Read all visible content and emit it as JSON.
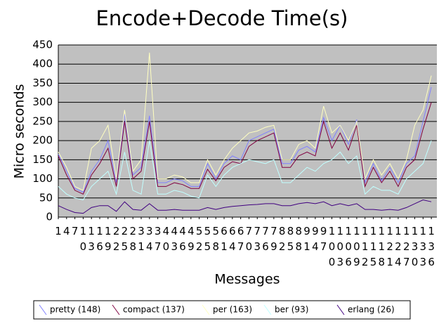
{
  "chart_data": {
    "type": "line",
    "title": "Encode+Decode Time(s)",
    "x_label": "Messages",
    "y_label": "Micro seconds",
    "x": [
      1,
      4,
      7,
      10,
      13,
      16,
      19,
      22,
      25,
      28,
      31,
      34,
      37,
      40,
      43,
      46,
      49,
      52,
      55,
      58,
      61,
      64,
      67,
      70,
      73,
      76,
      79,
      82,
      85,
      88,
      91,
      94,
      97,
      100,
      103,
      106,
      109,
      112,
      115,
      118,
      121,
      124,
      127,
      130,
      133,
      136
    ],
    "xlim": [
      1,
      138
    ],
    "xticks": [
      1,
      4,
      7,
      10,
      13,
      16,
      19,
      22,
      25,
      28,
      31,
      34,
      37,
      40,
      43,
      46,
      49,
      52,
      55,
      58,
      61,
      64,
      67,
      70,
      73,
      76,
      79,
      82,
      85,
      88,
      91,
      94,
      97,
      100,
      103,
      106,
      109,
      112,
      115,
      118,
      121,
      124,
      127,
      130,
      133,
      136
    ],
    "ylim": [
      0,
      450
    ],
    "yticks": [
      0,
      50,
      100,
      150,
      200,
      250,
      300,
      350,
      400,
      450
    ],
    "grid": true,
    "legend": "bottom",
    "series": [
      {
        "name": "pretty (148)",
        "color": "#8080ff",
        "values": [
          165,
          120,
          75,
          65,
          120,
          150,
          200,
          90,
          270,
          110,
          130,
          265,
          90,
          90,
          100,
          95,
          80,
          80,
          140,
          100,
          140,
          160,
          150,
          200,
          210,
          220,
          230,
          140,
          140,
          175,
          185,
          170,
          260,
          200,
          240,
          190,
          255,
          90,
          140,
          95,
          130,
          90,
          140,
          160,
          250,
          340
        ]
      },
      {
        "name": "compact (137)",
        "color": "#800040",
        "values": [
          160,
          110,
          70,
          60,
          110,
          140,
          180,
          80,
          250,
          100,
          120,
          250,
          80,
          80,
          90,
          85,
          75,
          75,
          125,
          95,
          130,
          145,
          140,
          185,
          200,
          210,
          220,
          130,
          130,
          160,
          170,
          160,
          250,
          180,
          220,
          175,
          240,
          80,
          130,
          90,
          120,
          80,
          130,
          150,
          230,
          300
        ]
      },
      {
        "name": "per (163)",
        "color": "#ffffc0",
        "values": [
          170,
          130,
          80,
          70,
          180,
          200,
          240,
          100,
          280,
          120,
          150,
          430,
          100,
          100,
          110,
          105,
          90,
          90,
          150,
          110,
          150,
          180,
          200,
          220,
          225,
          235,
          240,
          150,
          150,
          190,
          200,
          180,
          290,
          220,
          240,
          200,
          250,
          100,
          150,
          110,
          140,
          100,
          150,
          240,
          280,
          370
        ]
      },
      {
        "name": "ber (93)",
        "color": "#c0ffff",
        "values": [
          80,
          60,
          50,
          45,
          80,
          100,
          120,
          60,
          170,
          70,
          60,
          200,
          60,
          60,
          70,
          65,
          55,
          50,
          110,
          80,
          110,
          130,
          140,
          150,
          145,
          140,
          150,
          90,
          90,
          110,
          130,
          120,
          140,
          150,
          170,
          140,
          160,
          60,
          80,
          70,
          70,
          60,
          100,
          120,
          140,
          200
        ]
      },
      {
        "name": "erlang (26)",
        "color": "#400080",
        "values": [
          30,
          20,
          12,
          10,
          25,
          30,
          30,
          15,
          40,
          20,
          18,
          35,
          18,
          18,
          20,
          18,
          18,
          18,
          25,
          20,
          25,
          28,
          30,
          32,
          33,
          35,
          35,
          30,
          30,
          35,
          38,
          35,
          40,
          30,
          35,
          30,
          35,
          20,
          20,
          18,
          20,
          18,
          25,
          35,
          45,
          40
        ]
      }
    ]
  }
}
